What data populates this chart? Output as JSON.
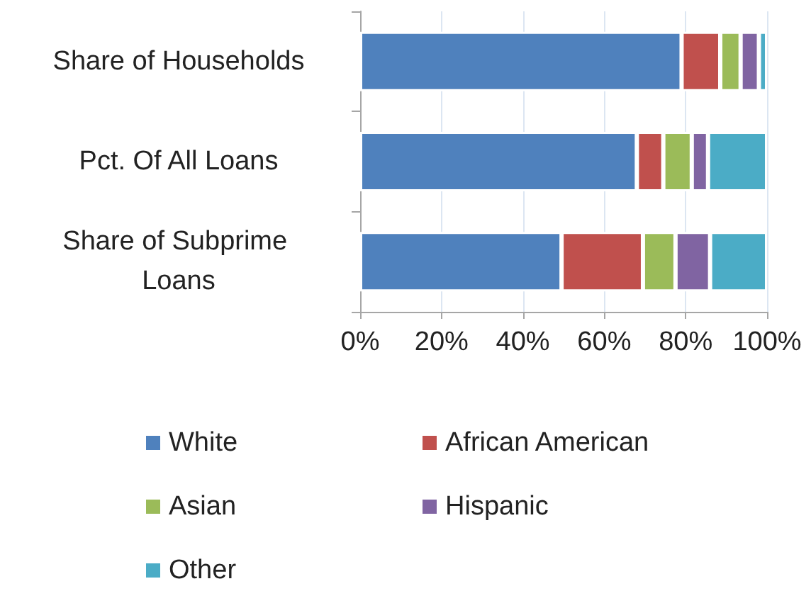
{
  "chart_data": {
    "type": "bar",
    "orientation": "horizontal",
    "stacked": true,
    "categories": [
      "Share of Households",
      "Pct. Of All Loans",
      "Share of Subprime Loans"
    ],
    "series": [
      {
        "name": "White",
        "color": "#4f81bd",
        "values": [
          79,
          68,
          49.5
        ]
      },
      {
        "name": "African American",
        "color": "#c0504d",
        "values": [
          9.5,
          6.5,
          20
        ]
      },
      {
        "name": "Asian",
        "color": "#9bbb59",
        "values": [
          5,
          7,
          8
        ]
      },
      {
        "name": "Hispanic",
        "color": "#8064a2",
        "values": [
          4.5,
          4,
          8.5
        ]
      },
      {
        "name": "Other",
        "color": "#4bacc6",
        "values": [
          2,
          14.5,
          14
        ]
      }
    ],
    "xlim": [
      0,
      100
    ],
    "xticks": [
      {
        "value": 0,
        "label": "0%"
      },
      {
        "value": 20,
        "label": "20%"
      },
      {
        "value": 40,
        "label": "40%"
      },
      {
        "value": 60,
        "label": "60%"
      },
      {
        "value": 80,
        "label": "80%"
      },
      {
        "value": 100,
        "label": "100%"
      }
    ],
    "grid": "x",
    "legend": "bottom"
  }
}
